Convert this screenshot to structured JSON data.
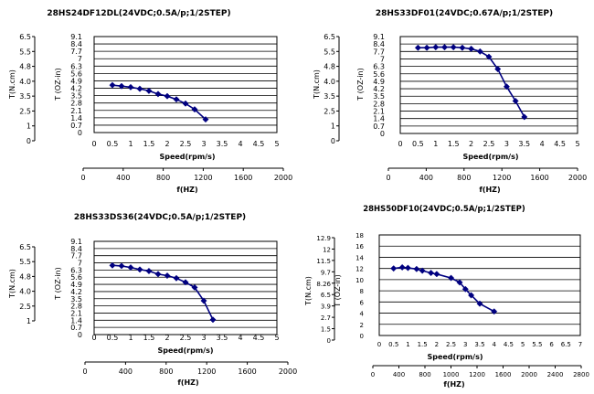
{
  "chart_data": [
    {
      "type": "line",
      "title": "28HS24DF12DL(24VDC;0.5A/p;1/2STEP)",
      "xlabel": "Speed(rpm/s)",
      "xlim": [
        0,
        5
      ],
      "x_ticks": [
        "0",
        "0.5",
        "1",
        "1.5",
        "2",
        "2.5",
        "3",
        "3.5",
        "4",
        "4.5",
        "5"
      ],
      "ylabel": "T (OZ-in)",
      "ylim": [
        0,
        9.1
      ],
      "y_ticks": [
        "0",
        "0.7",
        "1.4",
        "2.1",
        "2.8",
        "3.5",
        "4.2",
        "4.9",
        "5.6",
        "6.3",
        "7",
        "7.7",
        "8.4",
        "9.1"
      ],
      "y2label": "T(N.cm)",
      "y2_ticks": [
        "0",
        "1",
        "2.5",
        "3.5",
        "4.0",
        "4.8",
        "5.5",
        "6.5"
      ],
      "flabel": "f(HZ)",
      "f_ticks": [
        "0",
        "400",
        "800",
        "1200",
        "1600",
        "2000"
      ],
      "grid": true,
      "x": [
        0.5,
        0.75,
        1.0,
        1.25,
        1.5,
        1.75,
        2.0,
        2.25,
        2.5,
        2.75,
        3.05
      ],
      "values": [
        4.5,
        4.4,
        4.3,
        4.15,
        3.95,
        3.65,
        3.45,
        3.15,
        2.75,
        2.2,
        1.25
      ]
    },
    {
      "type": "line",
      "title": "28HS33DF01(24VDC;0.67A/p;1/2STEP)",
      "xlabel": "Speed(rpm/s)",
      "xlim": [
        0,
        5
      ],
      "x_ticks": [
        "0",
        "0.5",
        "1",
        "1.5",
        "2",
        "2.5",
        "3",
        "3.5",
        "4",
        "4.5",
        "5"
      ],
      "ylabel": "T (OZ-in)",
      "ylim": [
        0,
        9.1
      ],
      "y_ticks": [
        "0",
        "0.7",
        "1.4",
        "2.1",
        "2.8",
        "3.5",
        "4.2",
        "4.9",
        "5.6",
        "6.3",
        "7",
        "7.7",
        "8.4",
        "9.1"
      ],
      "y2label": "T(N.cm)",
      "y2_ticks": [
        "0",
        "1",
        "2.5",
        "3.5",
        "4.0",
        "4.8",
        "5.5",
        "6.5"
      ],
      "flabel": "f(HZ)",
      "f_ticks": [
        "0",
        "400",
        "800",
        "1200",
        "1600",
        "2000"
      ],
      "grid": true,
      "x": [
        0.5,
        0.75,
        1.0,
        1.25,
        1.5,
        1.75,
        2.0,
        2.25,
        2.5,
        2.75,
        3.0,
        3.25,
        3.5
      ],
      "values": [
        8.05,
        8.05,
        8.1,
        8.1,
        8.1,
        8.05,
        7.95,
        7.7,
        7.2,
        6.05,
        4.4,
        3.05,
        1.55
      ]
    },
    {
      "type": "line",
      "title": "28HS33DS36(24VDC;0.5A/p;1/2STEP)",
      "xlabel": "Speed(rpm/s)",
      "xlim": [
        0,
        5
      ],
      "x_ticks": [
        "0",
        "0.5",
        "1",
        "1.5",
        "2",
        "2.5",
        "3",
        "3.5",
        "4",
        "4.5",
        "5"
      ],
      "ylabel": "T (OZ-in)",
      "ylim": [
        0,
        9.1
      ],
      "y_ticks": [
        "0",
        "0.7",
        "1.4",
        "2.1",
        "2.8",
        "3.5",
        "4.2",
        "4.9",
        "5.6",
        "6.3",
        "7",
        "7.7",
        "8.4",
        "9.1"
      ],
      "y2label": "T(N.cm)",
      "y2_ticks": [
        "1",
        "2.5",
        "4.0",
        "4.8",
        "5.5",
        "6.5"
      ],
      "flabel": "f(HZ)",
      "f_ticks": [
        "0",
        "400",
        "800",
        "1200",
        "1600",
        "2000"
      ],
      "grid": true,
      "x": [
        0.5,
        0.75,
        1.0,
        1.25,
        1.5,
        1.75,
        2.0,
        2.25,
        2.5,
        2.75,
        3.0,
        3.25
      ],
      "values": [
        6.75,
        6.7,
        6.55,
        6.35,
        6.2,
        5.9,
        5.75,
        5.5,
        5.1,
        4.6,
        3.3,
        1.45
      ]
    },
    {
      "type": "line",
      "title": "28HS50DF10(24VDC;0.5A/p;1/2STEP)",
      "xlabel": "Speed(rpm/s)",
      "xlim": [
        0,
        7
      ],
      "x_ticks": [
        "0",
        "0.5",
        "1",
        "1.5",
        "2",
        "2.5",
        "3",
        "3.5",
        "4",
        "4.5",
        "5",
        "5.5",
        "6",
        "6.5",
        "7"
      ],
      "ylabel": "T (OZ-in)",
      "ylim": [
        0,
        18
      ],
      "y_ticks": [
        "0",
        "2",
        "4",
        "6",
        "8",
        "10",
        "12",
        "14",
        "16",
        "18"
      ],
      "y2label": "T(N.cm)",
      "y2_ticks": [
        "0",
        "1.5",
        "2.7",
        "3.9",
        "6.5",
        "8.26",
        "9.7",
        "11.5",
        "12",
        "12.9"
      ],
      "flabel": "f(HZ)",
      "f_ticks": [
        "0",
        "400",
        "800",
        "1000",
        "1200",
        "1600",
        "2000",
        "2400",
        "2800"
      ],
      "grid": true,
      "x": [
        0.5,
        0.8,
        1.0,
        1.3,
        1.5,
        1.8,
        2.0,
        2.5,
        2.8,
        3.0,
        3.2,
        3.5,
        4.0
      ],
      "values": [
        12.0,
        12.2,
        12.1,
        11.9,
        11.6,
        11.2,
        11.0,
        10.3,
        9.5,
        8.3,
        7.2,
        5.7,
        4.3
      ]
    }
  ]
}
